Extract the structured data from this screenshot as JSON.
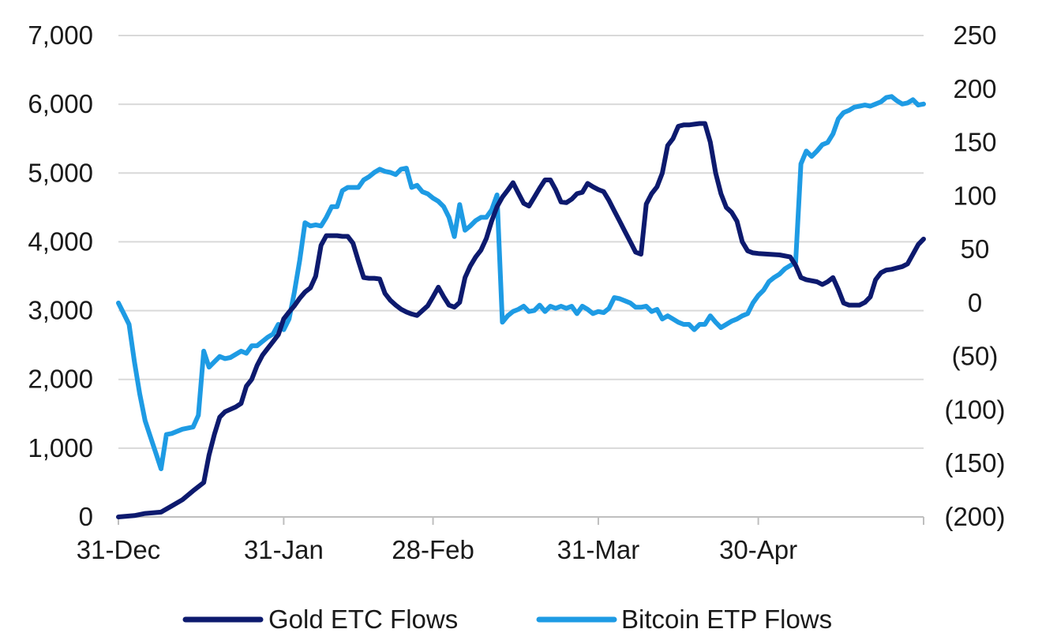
{
  "chart_data": {
    "type": "line",
    "title": "",
    "xlabel": "",
    "ylabel": "",
    "x_axis": {
      "type": "date",
      "start": "31-Dec",
      "end": "31-May",
      "ticks": [
        "31-Dec",
        "31-Jan",
        "28-Feb",
        "31-Mar",
        "30-Apr"
      ],
      "tick_days": [
        0,
        31,
        59,
        90,
        120
      ]
    },
    "y_left": {
      "range": [
        0,
        7000
      ],
      "ticks": [
        0,
        1000,
        2000,
        3000,
        4000,
        5000,
        6000,
        7000
      ],
      "tick_labels": [
        "0",
        "1,000",
        "2,000",
        "3,000",
        "4,000",
        "5,000",
        "6,000",
        "7,000"
      ]
    },
    "y_right": {
      "range": [
        -200,
        250
      ],
      "ticks": [
        -200,
        -150,
        -100,
        -50,
        0,
        50,
        100,
        150,
        200,
        250
      ],
      "tick_labels": [
        "(200)",
        "(150)",
        "(100)",
        "(50)",
        "0",
        "50",
        "100",
        "150",
        "200",
        "250"
      ]
    },
    "grid": "horizontal",
    "legend_position": "bottom",
    "series": [
      {
        "name": "Gold ETC Flows",
        "axis": "left",
        "color": "#0d1a6e",
        "points": [
          [
            0,
            0
          ],
          [
            3,
            20
          ],
          [
            5,
            50
          ],
          [
            8,
            70
          ],
          [
            10,
            160
          ],
          [
            12,
            250
          ],
          [
            14,
            380
          ],
          [
            16,
            500
          ],
          [
            17,
            900
          ],
          [
            18,
            1200
          ],
          [
            19,
            1450
          ],
          [
            20,
            1530
          ],
          [
            22,
            1600
          ],
          [
            23,
            1650
          ],
          [
            24,
            1900
          ],
          [
            25,
            2000
          ],
          [
            26,
            2200
          ],
          [
            27,
            2350
          ],
          [
            28,
            2450
          ],
          [
            29,
            2550
          ],
          [
            30,
            2650
          ],
          [
            31,
            2880
          ],
          [
            32,
            2980
          ],
          [
            33,
            3070
          ],
          [
            34,
            3180
          ],
          [
            35,
            3270
          ],
          [
            36,
            3330
          ],
          [
            37,
            3500
          ],
          [
            38,
            3950
          ],
          [
            39,
            4090
          ],
          [
            40,
            4090
          ],
          [
            41,
            4090
          ],
          [
            42,
            4080
          ],
          [
            43,
            4080
          ],
          [
            44,
            3980
          ],
          [
            45,
            3720
          ],
          [
            46,
            3480
          ],
          [
            47,
            3470
          ],
          [
            48,
            3470
          ],
          [
            49,
            3460
          ],
          [
            50,
            3250
          ],
          [
            51,
            3150
          ],
          [
            52,
            3080
          ],
          [
            53,
            3020
          ],
          [
            54,
            2980
          ],
          [
            55,
            2950
          ],
          [
            56,
            2930
          ],
          [
            57,
            3000
          ],
          [
            58,
            3070
          ],
          [
            59,
            3200
          ],
          [
            60,
            3340
          ],
          [
            61,
            3200
          ],
          [
            62,
            3080
          ],
          [
            63,
            3050
          ],
          [
            64,
            3120
          ],
          [
            65,
            3480
          ],
          [
            66,
            3650
          ],
          [
            67,
            3780
          ],
          [
            68,
            3880
          ],
          [
            69,
            4050
          ],
          [
            70,
            4300
          ],
          [
            71,
            4510
          ],
          [
            72,
            4650
          ],
          [
            73,
            4750
          ],
          [
            74,
            4860
          ],
          [
            75,
            4710
          ],
          [
            76,
            4560
          ],
          [
            77,
            4520
          ],
          [
            78,
            4650
          ],
          [
            79,
            4780
          ],
          [
            80,
            4900
          ],
          [
            81,
            4900
          ],
          [
            82,
            4760
          ],
          [
            83,
            4580
          ],
          [
            84,
            4570
          ],
          [
            85,
            4620
          ],
          [
            86,
            4700
          ],
          [
            87,
            4720
          ],
          [
            88,
            4850
          ],
          [
            89,
            4800
          ],
          [
            90,
            4760
          ],
          [
            91,
            4730
          ],
          [
            92,
            4600
          ],
          [
            93,
            4450
          ],
          [
            94,
            4300
          ],
          [
            95,
            4150
          ],
          [
            96,
            4000
          ],
          [
            97,
            3850
          ],
          [
            98,
            3820
          ],
          [
            99,
            4550
          ],
          [
            100,
            4700
          ],
          [
            101,
            4800
          ],
          [
            102,
            5000
          ],
          [
            103,
            5400
          ],
          [
            104,
            5500
          ],
          [
            105,
            5680
          ],
          [
            106,
            5700
          ],
          [
            107,
            5700
          ],
          [
            108,
            5710
          ],
          [
            109,
            5720
          ],
          [
            110,
            5720
          ],
          [
            111,
            5450
          ],
          [
            112,
            5000
          ],
          [
            113,
            4700
          ],
          [
            114,
            4500
          ],
          [
            115,
            4430
          ],
          [
            116,
            4300
          ],
          [
            117,
            4000
          ],
          [
            118,
            3870
          ],
          [
            119,
            3840
          ],
          [
            120,
            3830
          ],
          [
            122,
            3820
          ],
          [
            124,
            3810
          ],
          [
            126,
            3780
          ],
          [
            127,
            3660
          ],
          [
            128,
            3480
          ],
          [
            129,
            3450
          ],
          [
            131,
            3420
          ],
          [
            132,
            3380
          ],
          [
            133,
            3420
          ],
          [
            134,
            3480
          ],
          [
            135,
            3310
          ],
          [
            136,
            3110
          ],
          [
            137,
            3080
          ],
          [
            138,
            3080
          ],
          [
            139,
            3080
          ],
          [
            140,
            3120
          ],
          [
            141,
            3200
          ],
          [
            142,
            3450
          ],
          [
            143,
            3550
          ],
          [
            144,
            3590
          ],
          [
            145,
            3600
          ],
          [
            146,
            3620
          ],
          [
            147,
            3640
          ],
          [
            148,
            3680
          ],
          [
            149,
            3820
          ],
          [
            150,
            3960
          ],
          [
            151,
            4040
          ]
        ]
      },
      {
        "name": "Bitcoin ETP Flows",
        "axis": "right",
        "color": "#1e9be4",
        "points": [
          [
            0,
            0
          ],
          [
            1,
            -10
          ],
          [
            2,
            -20
          ],
          [
            3,
            -55
          ],
          [
            4,
            -85
          ],
          [
            5,
            -110
          ],
          [
            6,
            -125
          ],
          [
            7,
            -140
          ],
          [
            8,
            -155
          ],
          [
            9,
            -123
          ],
          [
            10,
            -122
          ],
          [
            12,
            -118
          ],
          [
            14,
            -116
          ],
          [
            15,
            -105
          ],
          [
            16,
            -45
          ],
          [
            17,
            -60
          ],
          [
            18,
            -55
          ],
          [
            19,
            -50
          ],
          [
            20,
            -52
          ],
          [
            21,
            -51
          ],
          [
            22,
            -48
          ],
          [
            23,
            -45
          ],
          [
            24,
            -47
          ],
          [
            25,
            -40
          ],
          [
            26,
            -40
          ],
          [
            27,
            -36
          ],
          [
            28,
            -32
          ],
          [
            29,
            -29
          ],
          [
            30,
            -20
          ],
          [
            31,
            -25
          ],
          [
            32,
            -15
          ],
          [
            33,
            10
          ],
          [
            34,
            40
          ],
          [
            35,
            75
          ],
          [
            36,
            72
          ],
          [
            37,
            73
          ],
          [
            38,
            72
          ],
          [
            39,
            80
          ],
          [
            40,
            90
          ],
          [
            41,
            90
          ],
          [
            42,
            105
          ],
          [
            43,
            108
          ],
          [
            44,
            108
          ],
          [
            45,
            108
          ],
          [
            46,
            115
          ],
          [
            47,
            118
          ],
          [
            48,
            122
          ],
          [
            49,
            125
          ],
          [
            50,
            123
          ],
          [
            51,
            122
          ],
          [
            52,
            120
          ],
          [
            53,
            125
          ],
          [
            54,
            126
          ],
          [
            55,
            108
          ],
          [
            56,
            110
          ],
          [
            57,
            104
          ],
          [
            58,
            102
          ],
          [
            59,
            98
          ],
          [
            60,
            95
          ],
          [
            61,
            90
          ],
          [
            62,
            80
          ],
          [
            63,
            62
          ],
          [
            64,
            92
          ],
          [
            65,
            68
          ],
          [
            66,
            72
          ],
          [
            67,
            77
          ],
          [
            68,
            80
          ],
          [
            69,
            80
          ],
          [
            70,
            87
          ],
          [
            71,
            101
          ],
          [
            72,
            -18
          ],
          [
            73,
            -12
          ],
          [
            74,
            -8
          ],
          [
            75,
            -6
          ],
          [
            76,
            -3
          ],
          [
            77,
            -8
          ],
          [
            78,
            -7
          ],
          [
            79,
            -2
          ],
          [
            80,
            -8
          ],
          [
            81,
            -3
          ],
          [
            82,
            -5
          ],
          [
            83,
            -3
          ],
          [
            84,
            -5
          ],
          [
            85,
            -3
          ],
          [
            86,
            -10
          ],
          [
            87,
            -3
          ],
          [
            88,
            -6
          ],
          [
            89,
            -10
          ],
          [
            90,
            -8
          ],
          [
            91,
            -9
          ],
          [
            92,
            -5
          ],
          [
            93,
            5
          ],
          [
            94,
            4
          ],
          [
            95,
            2
          ],
          [
            96,
            0
          ],
          [
            97,
            -4
          ],
          [
            98,
            -4
          ],
          [
            99,
            -3
          ],
          [
            100,
            -8
          ],
          [
            101,
            -6
          ],
          [
            102,
            -15
          ],
          [
            103,
            -12
          ],
          [
            104,
            -15
          ],
          [
            105,
            -18
          ],
          [
            106,
            -20
          ],
          [
            107,
            -20
          ],
          [
            108,
            -25
          ],
          [
            109,
            -20
          ],
          [
            110,
            -20
          ],
          [
            111,
            -12
          ],
          [
            112,
            -18
          ],
          [
            113,
            -23
          ],
          [
            114,
            -20
          ],
          [
            115,
            -17
          ],
          [
            116,
            -15
          ],
          [
            117,
            -12
          ],
          [
            118,
            -10
          ],
          [
            119,
            0
          ],
          [
            120,
            7
          ],
          [
            121,
            12
          ],
          [
            122,
            20
          ],
          [
            123,
            24
          ],
          [
            124,
            27
          ],
          [
            125,
            32
          ],
          [
            126,
            35
          ],
          [
            127,
            38
          ],
          [
            128,
            130
          ],
          [
            129,
            142
          ],
          [
            130,
            137
          ],
          [
            131,
            142
          ],
          [
            132,
            148
          ],
          [
            133,
            150
          ],
          [
            134,
            158
          ],
          [
            135,
            172
          ],
          [
            136,
            178
          ],
          [
            137,
            180
          ],
          [
            138,
            183
          ],
          [
            139,
            184
          ],
          [
            140,
            185
          ],
          [
            141,
            184
          ],
          [
            142,
            186
          ],
          [
            143,
            188
          ],
          [
            144,
            192
          ],
          [
            145,
            193
          ],
          [
            146,
            189
          ],
          [
            147,
            186
          ],
          [
            148,
            187
          ],
          [
            149,
            190
          ],
          [
            150,
            185
          ],
          [
            151,
            186
          ]
        ]
      }
    ]
  },
  "legend": {
    "items": [
      {
        "label": "Gold ETC Flows",
        "color": "#0d1a6e"
      },
      {
        "label": "Bitcoin ETP Flows",
        "color": "#1e9be4"
      }
    ]
  }
}
